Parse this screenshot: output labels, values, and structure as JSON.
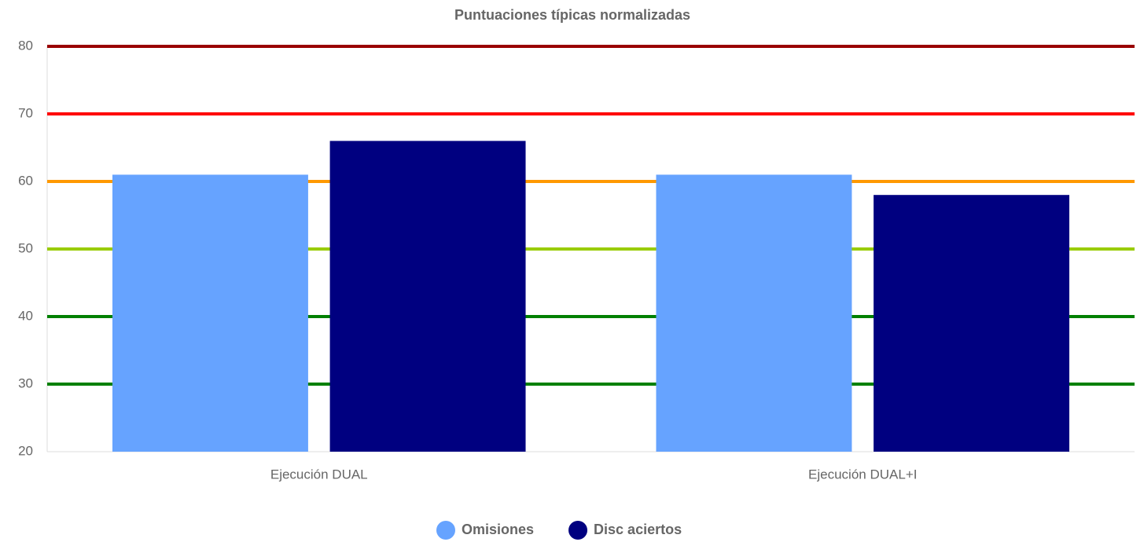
{
  "chart_data": {
    "type": "bar",
    "title": "Puntuaciones típicas normalizadas",
    "categories": [
      "Ejecución DUAL",
      "Ejecución DUAL+I"
    ],
    "series": [
      {
        "name": "Omisiones",
        "color": "#66a3ff",
        "values": [
          61,
          61
        ]
      },
      {
        "name": "Disc aciertos",
        "color": "#000080",
        "values": [
          66,
          58
        ]
      }
    ],
    "ylim": [
      20,
      80
    ],
    "yticks": [
      20,
      30,
      40,
      50,
      60,
      70,
      80
    ],
    "grid": true,
    "grid_colors": [
      "#dddddd",
      "#008000",
      "#008000",
      "#99cc00",
      "#ff9900",
      "#ff0000",
      "#990000"
    ],
    "legend": "bottom"
  }
}
